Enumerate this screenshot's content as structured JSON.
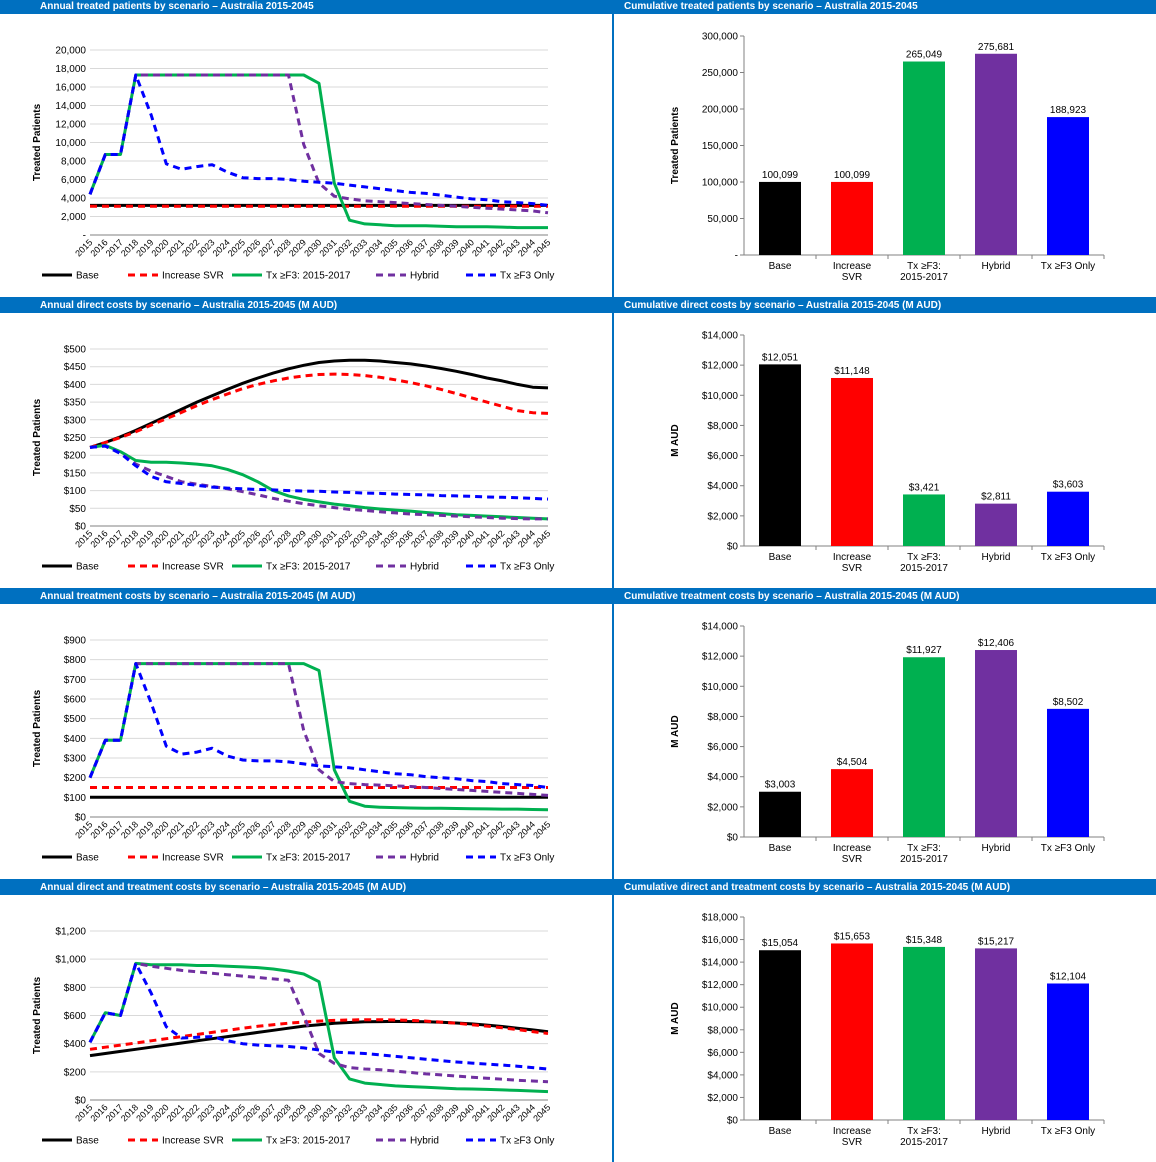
{
  "years": [
    "2015",
    "2016",
    "2017",
    "2018",
    "2019",
    "2020",
    "2021",
    "2022",
    "2023",
    "2024",
    "2025",
    "2026",
    "2027",
    "2028",
    "2029",
    "2030",
    "2031",
    "2032",
    "2033",
    "2034",
    "2035",
    "2036",
    "2037",
    "2038",
    "2039",
    "2040",
    "2041",
    "2042",
    "2043",
    "2044",
    "2045"
  ],
  "line_legend": [
    "Base",
    "Increase SVR",
    "Tx ≥F3: 2015-2017",
    "Hybrid",
    "Tx ≥F3 Only"
  ],
  "bar_categories": [
    "Base",
    "Increase SVR",
    "Tx ≥F3: 2015-2017",
    "Hybrid",
    "Tx ≥F3 Only"
  ],
  "colors": {
    "Base": "#000000",
    "Increase SVR": "#ff0000",
    "Tx": "#00b050",
    "Hybrid": "#7030a0",
    "TxOnly": "#0000ff",
    "title_bar": "#0070c0"
  },
  "chart_data": [
    {
      "id": "annual-treated-patients",
      "type": "line",
      "title": "Annual treated patients by scenario – Australia 2015-2045",
      "ylabel": "Treated Patients",
      "ylim": [
        0,
        20000
      ],
      "yticks": [
        "-",
        "2,000",
        "4,000",
        "6,000",
        "8,000",
        "10,000",
        "12,000",
        "14,000",
        "16,000",
        "18,000",
        "20,000"
      ],
      "series": [
        {
          "name": "Base",
          "values": [
            3200,
            3200,
            3200,
            3200,
            3200,
            3200,
            3200,
            3200,
            3200,
            3200,
            3200,
            3200,
            3200,
            3200,
            3200,
            3200,
            3200,
            3200,
            3200,
            3200,
            3200,
            3200,
            3200,
            3200,
            3200,
            3200,
            3200,
            3200,
            3200,
            3200,
            3200
          ]
        },
        {
          "name": "Increase SVR",
          "values": [
            3100,
            3100,
            3100,
            3100,
            3100,
            3100,
            3100,
            3100,
            3100,
            3100,
            3100,
            3100,
            3100,
            3100,
            3100,
            3100,
            3100,
            3100,
            3100,
            3100,
            3100,
            3100,
            3100,
            3100,
            3100,
            3100,
            3100,
            3100,
            3100,
            3100,
            3100
          ]
        },
        {
          "name": "Tx ≥F3: 2015-2017",
          "values": [
            4400,
            8700,
            8700,
            17300,
            17300,
            17300,
            17300,
            17300,
            17300,
            17300,
            17300,
            17300,
            17300,
            17300,
            17300,
            16400,
            5600,
            1600,
            1200,
            1100,
            1000,
            1000,
            1000,
            950,
            900,
            900,
            900,
            850,
            800,
            800,
            800
          ]
        },
        {
          "name": "Hybrid",
          "values": [
            4400,
            8700,
            8700,
            17300,
            17300,
            17300,
            17300,
            17300,
            17300,
            17300,
            17300,
            17300,
            17300,
            17300,
            9800,
            5600,
            4200,
            3900,
            3700,
            3600,
            3500,
            3400,
            3300,
            3200,
            3100,
            3000,
            2900,
            2800,
            2700,
            2600,
            2400
          ]
        },
        {
          "name": "Tx ≥F3 Only",
          "values": [
            4400,
            8700,
            8700,
            17300,
            13000,
            7700,
            7100,
            7400,
            7600,
            6800,
            6200,
            6100,
            6100,
            6000,
            5800,
            5700,
            5600,
            5400,
            5200,
            5000,
            4800,
            4600,
            4500,
            4300,
            4100,
            3900,
            3800,
            3600,
            3500,
            3400,
            3200
          ]
        }
      ]
    },
    {
      "id": "cumulative-treated-patients",
      "type": "bar",
      "title": "Cumulative treated patients by scenario – Australia 2015-2045",
      "ylabel": "Treated Patients",
      "ylim": [
        0,
        300000
      ],
      "yticks": [
        "-",
        "50,000",
        "100,000",
        "150,000",
        "200,000",
        "250,000",
        "300,000"
      ],
      "values": [
        100099,
        100099,
        265049,
        275681,
        188923
      ],
      "labels": [
        "100,099",
        "100,099",
        "265,049",
        "275,681",
        "188,923"
      ]
    },
    {
      "id": "annual-direct-costs",
      "type": "line",
      "title": "Annual direct costs by scenario – Australia 2015-2045 (M AUD)",
      "ylabel": "Treated Patients",
      "ylim": [
        0,
        500
      ],
      "yticks": [
        "$0",
        "$50",
        "$100",
        "$150",
        "$200",
        "$250",
        "$300",
        "$350",
        "$400",
        "$450",
        "$500"
      ],
      "series": [
        {
          "name": "Base",
          "values": [
            222,
            236,
            252,
            270,
            290,
            310,
            330,
            350,
            368,
            386,
            403,
            418,
            432,
            444,
            454,
            462,
            466,
            468,
            468,
            466,
            462,
            458,
            452,
            445,
            437,
            428,
            418,
            410,
            400,
            392,
            390
          ]
        },
        {
          "name": "Increase SVR",
          "values": [
            222,
            236,
            250,
            266,
            285,
            303,
            321,
            340,
            357,
            373,
            388,
            400,
            410,
            418,
            424,
            428,
            429,
            428,
            425,
            420,
            413,
            405,
            396,
            386,
            374,
            362,
            350,
            338,
            326,
            320,
            318
          ]
        },
        {
          "name": "Tx ≥F3: 2015-2017",
          "values": [
            222,
            228,
            210,
            185,
            180,
            180,
            178,
            175,
            170,
            160,
            145,
            125,
            100,
            85,
            75,
            68,
            62,
            57,
            52,
            48,
            45,
            42,
            38,
            35,
            32,
            30,
            28,
            26,
            24,
            22,
            20
          ]
        },
        {
          "name": "Hybrid",
          "values": [
            222,
            226,
            205,
            175,
            155,
            140,
            125,
            118,
            112,
            105,
            97,
            88,
            78,
            70,
            63,
            57,
            52,
            47,
            44,
            40,
            37,
            34,
            32,
            30,
            28,
            26,
            24,
            22,
            21,
            20,
            20
          ]
        },
        {
          "name": "Tx ≥F3 Only",
          "values": [
            222,
            226,
            205,
            170,
            140,
            125,
            120,
            115,
            110,
            107,
            105,
            103,
            102,
            100,
            99,
            98,
            96,
            95,
            93,
            92,
            90,
            89,
            88,
            86,
            85,
            84,
            82,
            81,
            80,
            78,
            76
          ]
        }
      ]
    },
    {
      "id": "cumulative-direct-costs",
      "type": "bar",
      "title": "Cumulative direct costs by scenario – Australia 2015-2045 (M AUD)",
      "ylabel": "M AUD",
      "ylim": [
        0,
        14000
      ],
      "yticks": [
        "$0",
        "$2,000",
        "$4,000",
        "$6,000",
        "$8,000",
        "$10,000",
        "$12,000",
        "$14,000"
      ],
      "values": [
        12051,
        11148,
        3421,
        2811,
        3603
      ],
      "labels": [
        "$12,051",
        "$11,148",
        "$3,421",
        "$2,811",
        "$3,603"
      ]
    },
    {
      "id": "annual-treatment-costs",
      "type": "line",
      "title": "Annual treatment costs by scenario – Australia 2015-2045 (M AUD)",
      "ylabel": "Treated Patients",
      "ylim": [
        0,
        900
      ],
      "yticks": [
        "$0",
        "$100",
        "$200",
        "$300",
        "$400",
        "$500",
        "$600",
        "$700",
        "$800",
        "$900"
      ],
      "series": [
        {
          "name": "Base",
          "values": [
            100,
            100,
            100,
            100,
            100,
            100,
            100,
            100,
            100,
            100,
            100,
            100,
            100,
            100,
            100,
            100,
            100,
            100,
            100,
            100,
            100,
            100,
            100,
            100,
            100,
            100,
            100,
            100,
            100,
            100,
            100
          ]
        },
        {
          "name": "Increase SVR",
          "values": [
            150,
            150,
            150,
            150,
            150,
            150,
            150,
            150,
            150,
            150,
            150,
            150,
            150,
            150,
            150,
            150,
            150,
            150,
            150,
            150,
            150,
            150,
            150,
            150,
            150,
            150,
            150,
            150,
            150,
            150,
            150
          ]
        },
        {
          "name": "Tx ≥F3: 2015-2017",
          "values": [
            200,
            390,
            390,
            780,
            780,
            780,
            780,
            780,
            780,
            780,
            780,
            780,
            780,
            780,
            780,
            745,
            240,
            80,
            55,
            50,
            48,
            46,
            45,
            44,
            43,
            42,
            41,
            40,
            40,
            38,
            37
          ]
        },
        {
          "name": "Hybrid",
          "values": [
            200,
            390,
            390,
            780,
            780,
            780,
            780,
            780,
            780,
            780,
            780,
            780,
            780,
            780,
            440,
            240,
            180,
            170,
            165,
            162,
            158,
            155,
            150,
            145,
            140,
            135,
            130,
            125,
            120,
            115,
            110
          ]
        },
        {
          "name": "Tx ≥F3 Only",
          "values": [
            200,
            390,
            390,
            780,
            580,
            360,
            320,
            330,
            350,
            310,
            290,
            285,
            285,
            280,
            270,
            260,
            255,
            250,
            240,
            230,
            220,
            215,
            205,
            200,
            195,
            185,
            180,
            170,
            165,
            160,
            150
          ]
        }
      ]
    },
    {
      "id": "cumulative-treatment-costs",
      "type": "bar",
      "title": "Cumulative treatment costs by scenario – Australia 2015-2045 (M AUD)",
      "ylabel": "M AUD",
      "ylim": [
        0,
        14000
      ],
      "yticks": [
        "$0",
        "$2,000",
        "$4,000",
        "$6,000",
        "$8,000",
        "$10,000",
        "$12,000",
        "$14,000"
      ],
      "values": [
        3003,
        4504,
        11927,
        12406,
        8502
      ],
      "labels": [
        "$3,003",
        "$4,504",
        "$11,927",
        "$12,406",
        "$8,502"
      ]
    },
    {
      "id": "annual-direct-and-treatment-costs",
      "type": "line",
      "title": "Annual direct and treatment costs by scenario – Australia 2015-2045 (M AUD)",
      "ylabel": "Treated Patients",
      "ylim": [
        0,
        1200
      ],
      "yticks": [
        "$0",
        "$200",
        "$400",
        "$600",
        "$800",
        "$1,000",
        "$1,200"
      ],
      "series": [
        {
          "name": "Base",
          "values": [
            315,
            330,
            345,
            360,
            375,
            390,
            405,
            420,
            435,
            450,
            465,
            480,
            495,
            510,
            525,
            535,
            545,
            550,
            555,
            557,
            558,
            557,
            555,
            552,
            547,
            540,
            532,
            522,
            510,
            498,
            485
          ]
        },
        {
          "name": "Increase SVR",
          "values": [
            360,
            375,
            390,
            405,
            420,
            435,
            450,
            465,
            480,
            495,
            510,
            523,
            535,
            545,
            553,
            560,
            565,
            568,
            570,
            570,
            568,
            565,
            560,
            553,
            545,
            535,
            525,
            513,
            500,
            486,
            472
          ]
        },
        {
          "name": "Tx ≥F3: 2015-2017",
          "values": [
            410,
            620,
            600,
            970,
            960,
            960,
            960,
            955,
            955,
            950,
            945,
            940,
            930,
            915,
            895,
            840,
            300,
            150,
            120,
            110,
            100,
            95,
            90,
            85,
            80,
            78,
            75,
            72,
            68,
            64,
            60
          ]
        },
        {
          "name": "Hybrid",
          "values": [
            410,
            620,
            600,
            970,
            950,
            935,
            920,
            910,
            900,
            890,
            880,
            870,
            860,
            850,
            600,
            330,
            260,
            230,
            220,
            215,
            205,
            195,
            185,
            178,
            170,
            162,
            155,
            148,
            140,
            135,
            130
          ]
        },
        {
          "name": "Tx ≥F3 Only",
          "values": [
            410,
            620,
            600,
            970,
            760,
            520,
            440,
            445,
            450,
            420,
            400,
            390,
            385,
            380,
            370,
            355,
            340,
            335,
            330,
            320,
            310,
            300,
            290,
            280,
            270,
            262,
            255,
            248,
            240,
            230,
            220
          ]
        }
      ]
    },
    {
      "id": "cumulative-direct-and-treatment-costs",
      "type": "bar",
      "title": "Cumulative direct and treatment costs by scenario – Australia 2015-2045 (M AUD)",
      "ylabel": "M AUD",
      "ylim": [
        0,
        18000
      ],
      "yticks": [
        "$0",
        "$2,000",
        "$4,000",
        "$6,000",
        "$8,000",
        "$10,000",
        "$12,000",
        "$14,000",
        "$16,000",
        "$18,000"
      ],
      "values": [
        15054,
        15653,
        15348,
        15217,
        12104
      ],
      "labels": [
        "$15,054",
        "$15,653",
        "$15,348",
        "$15,217",
        "$12,104"
      ]
    }
  ]
}
